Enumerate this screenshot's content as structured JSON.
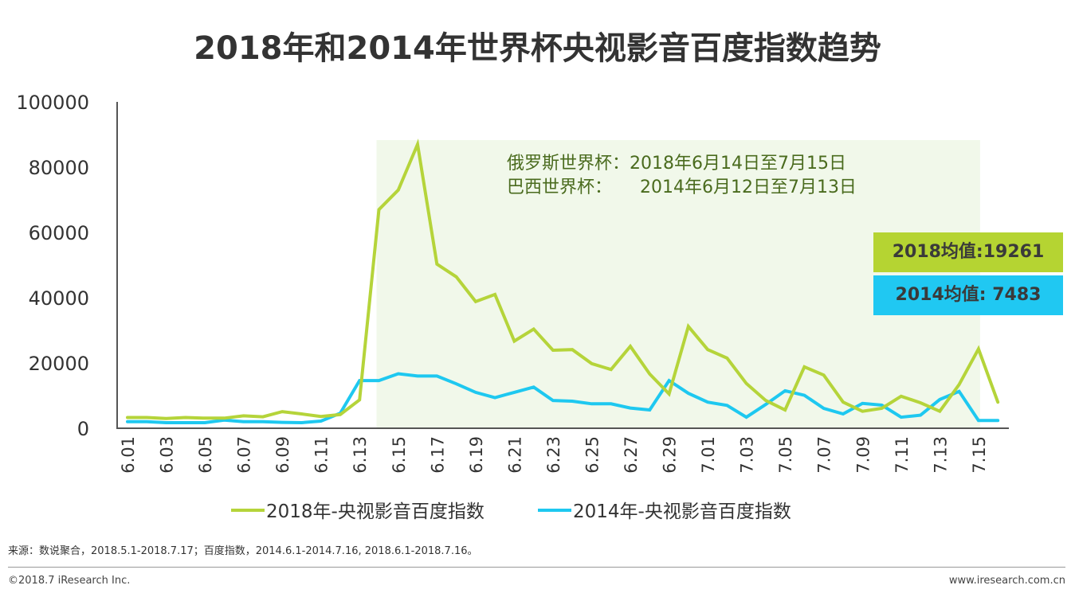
{
  "chart_data": {
    "type": "line",
    "title": "2018年和2014年世界杯央视影音百度指数趋势",
    "x": [
      "6.01",
      "6.02",
      "6.03",
      "6.04",
      "6.05",
      "6.06",
      "6.07",
      "6.08",
      "6.09",
      "6.10",
      "6.11",
      "6.12",
      "6.13",
      "6.14",
      "6.15",
      "6.16",
      "6.17",
      "6.18",
      "6.19",
      "6.20",
      "6.21",
      "6.22",
      "6.23",
      "6.24",
      "6.25",
      "6.26",
      "6.27",
      "6.28",
      "6.29",
      "6.30",
      "7.01",
      "7.02",
      "7.03",
      "7.04",
      "7.05",
      "7.06",
      "7.07",
      "7.08",
      "7.09",
      "7.10",
      "7.11",
      "7.12",
      "7.13",
      "7.14",
      "7.15",
      "7.16"
    ],
    "xtick_labels": [
      "6.01",
      "6.03",
      "6.05",
      "6.07",
      "6.09",
      "6.11",
      "6.13",
      "6.15",
      "6.17",
      "6.19",
      "6.21",
      "6.23",
      "6.25",
      "6.27",
      "6.29",
      "7.01",
      "7.03",
      "7.05",
      "7.07",
      "7.09",
      "7.11",
      "7.13",
      "7.15"
    ],
    "ylim": [
      0,
      100000
    ],
    "yticks": [
      "0",
      "20000",
      "40000",
      "60000",
      "80000",
      "100000"
    ],
    "grid": false,
    "legend_placement": "bottom",
    "series": [
      {
        "name": "2018年-央视影音百度指数",
        "color": "#b5d43a",
        "values": [
          3300,
          3300,
          3000,
          3300,
          3100,
          3100,
          3800,
          3500,
          5100,
          4400,
          3600,
          4200,
          8700,
          67000,
          73000,
          87000,
          50300,
          46400,
          38800,
          41000,
          26700,
          30400,
          23900,
          24100,
          19800,
          18000,
          25100,
          16600,
          10500,
          31200,
          24100,
          21500,
          13700,
          8500,
          5600,
          18800,
          16300,
          8000,
          5200,
          6100,
          9800,
          7800,
          5200,
          13400,
          24300,
          8000
        ]
      },
      {
        "name": "2014年-央视影音百度指数",
        "color": "#1ec8f0",
        "values": [
          2000,
          2000,
          1700,
          1700,
          1700,
          2500,
          2000,
          2000,
          1800,
          1700,
          2200,
          4600,
          14600,
          14600,
          16700,
          16000,
          16000,
          13600,
          11000,
          9400,
          11000,
          12600,
          8500,
          8300,
          7500,
          7500,
          6200,
          5600,
          14600,
          10700,
          8000,
          7000,
          3400,
          7300,
          11500,
          10100,
          6100,
          4400,
          7600,
          7100,
          3400,
          4000,
          8800,
          11300,
          2400,
          2400
        ]
      }
    ],
    "highlight": {
      "from": "6.14",
      "to": "7.15",
      "color": "#f1f8ea"
    },
    "annotations": [
      "俄罗斯世界杯：2018年6月14日至7月15日",
      "巴西世界杯：     2014年6月12日至7月13日"
    ],
    "annotation_color": "#4a6b1e",
    "mean_boxes": [
      {
        "label": "2018均值:19261",
        "color": "#b5d432"
      },
      {
        "label": "2014均值: 7483",
        "color": "#20c8f2"
      }
    ]
  },
  "footer": {
    "source": "来源：数说聚合，2018.5.1-2018.7.17；百度指数，2014.6.1-2014.7.16, 2018.6.1-2018.7.16。",
    "copyright": "©2018.7 iResearch Inc.",
    "website": "www.iresearch.com.cn"
  }
}
